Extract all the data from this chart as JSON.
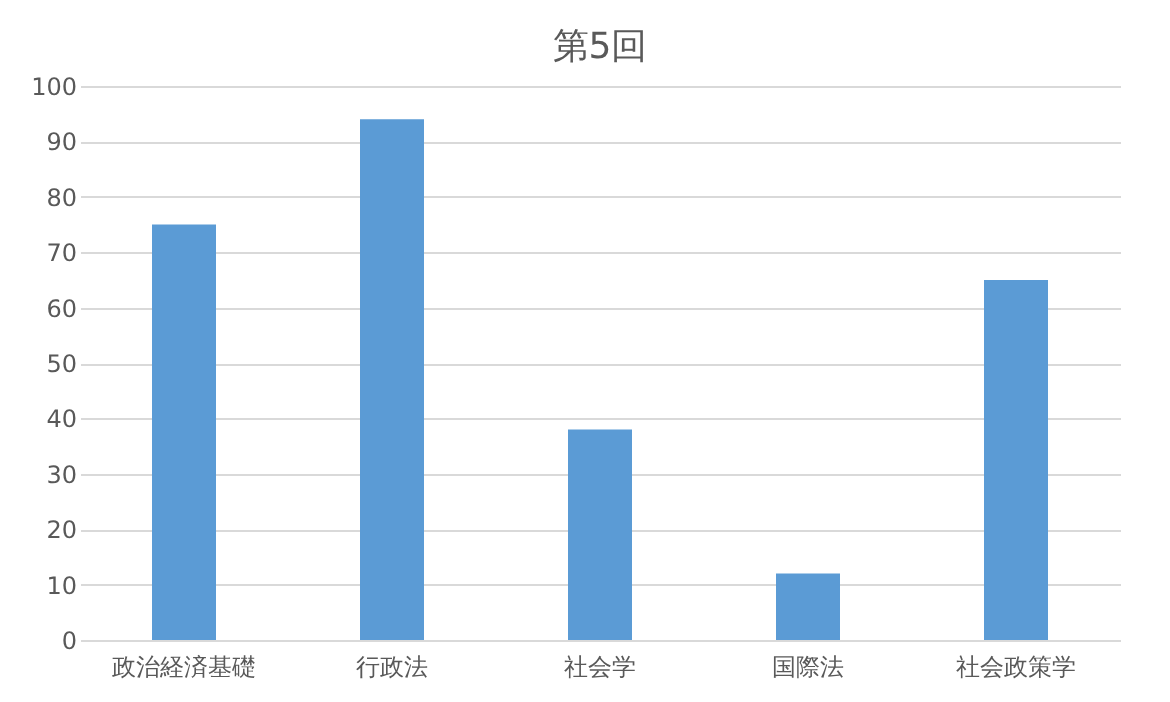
{
  "chart_data": {
    "type": "bar",
    "title": "第5回",
    "categories": [
      "政治経済基礎",
      "行政法",
      "社会学",
      "国際法",
      "社会政策学"
    ],
    "values": [
      75,
      94,
      38,
      12,
      65
    ],
    "color": "#5b9bd5",
    "ylim": [
      0,
      100
    ],
    "yticks": [
      0,
      10,
      20,
      30,
      40,
      50,
      60,
      70,
      80,
      90,
      100
    ],
    "grid": "y"
  }
}
